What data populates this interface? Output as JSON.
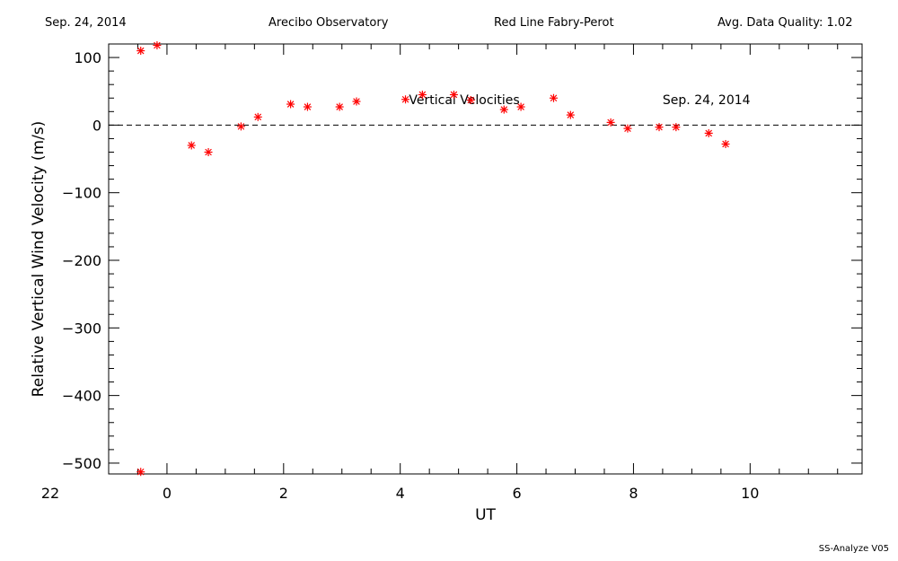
{
  "header": {
    "date": "Sep. 24, 2014",
    "observatory": "Arecibo Observatory",
    "instrument": "Red Line Fabry-Perot",
    "quality": "Avg. Data Quality: 1.02"
  },
  "footer": "SS-Analyze V05",
  "colors": {
    "marker": "#ff0000",
    "axis": "#000000"
  },
  "chart_data": {
    "type": "scatter",
    "xlabel": "UT",
    "ylabel": "Relative Vertical Wind Velocity (m/s)",
    "annotation_title": "Vertical Velocities",
    "annotation_date": "Sep. 24, 2014",
    "xlim": [
      23.0,
      11.92
    ],
    "ylim": [
      -516,
      120
    ],
    "x_ticks": [
      {
        "value": 22,
        "label": "22"
      },
      {
        "value": 0,
        "label": "0"
      },
      {
        "value": 2,
        "label": "2"
      },
      {
        "value": 4,
        "label": "4"
      },
      {
        "value": 6,
        "label": "6"
      },
      {
        "value": 8,
        "label": "8"
      },
      {
        "value": 10,
        "label": "10"
      }
    ],
    "y_ticks": [
      {
        "value": 100,
        "label": "100"
      },
      {
        "value": 0,
        "label": "0"
      },
      {
        "value": -100,
        "label": "−100"
      },
      {
        "value": -200,
        "label": "−200"
      },
      {
        "value": -300,
        "label": "−300"
      },
      {
        "value": -400,
        "label": "−400"
      },
      {
        "value": -500,
        "label": "−500"
      }
    ],
    "reference_line": 0,
    "series": [
      {
        "marker": "asterisk",
        "points": [
          {
            "x": 23.55,
            "y": -513
          },
          {
            "x": 23.55,
            "y": 110
          },
          {
            "x": 23.83,
            "y": 118
          },
          {
            "x": 0.42,
            "y": -30
          },
          {
            "x": 0.71,
            "y": -40
          },
          {
            "x": 1.27,
            "y": -2
          },
          {
            "x": 1.56,
            "y": 12
          },
          {
            "x": 2.12,
            "y": 31
          },
          {
            "x": 2.41,
            "y": 27
          },
          {
            "x": 2.96,
            "y": 27
          },
          {
            "x": 3.25,
            "y": 35
          },
          {
            "x": 4.09,
            "y": 38
          },
          {
            "x": 4.38,
            "y": 45
          },
          {
            "x": 4.92,
            "y": 45
          },
          {
            "x": 5.21,
            "y": 37
          },
          {
            "x": 5.78,
            "y": 23
          },
          {
            "x": 6.07,
            "y": 27
          },
          {
            "x": 6.63,
            "y": 40
          },
          {
            "x": 6.92,
            "y": 15
          },
          {
            "x": 7.61,
            "y": 4
          },
          {
            "x": 7.9,
            "y": -5
          },
          {
            "x": 8.44,
            "y": -3
          },
          {
            "x": 8.73,
            "y": -3
          },
          {
            "x": 9.29,
            "y": -12
          },
          {
            "x": 9.58,
            "y": -28
          }
        ]
      }
    ]
  }
}
